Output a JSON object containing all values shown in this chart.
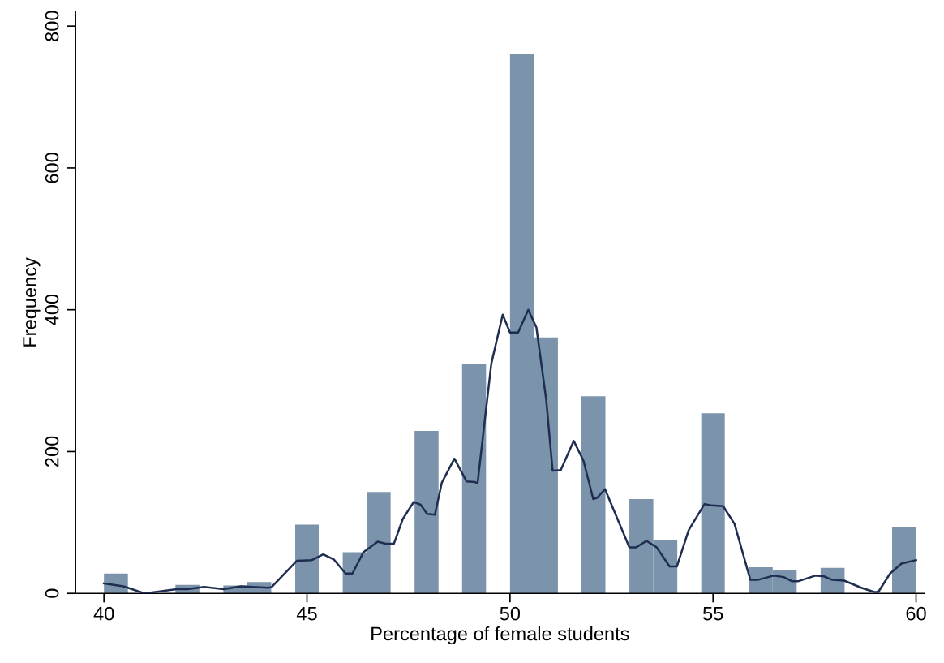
{
  "chart_data": {
    "type": "histogram",
    "xlabel": "Percentage of female students",
    "ylabel": "Frequency",
    "bins": [
      40,
      40.59,
      41.76,
      42.35,
      42.94,
      43.53,
      44.12,
      44.71,
      45.29,
      45.88,
      46.47,
      47.06,
      47.65,
      48.24,
      48.82,
      49.41,
      50,
      50.59,
      51.18,
      51.76,
      52.35,
      52.94,
      53.53,
      54.12,
      54.71,
      55.29,
      55.88,
      56.47,
      57.06,
      57.65,
      58.24,
      59.41,
      60
    ],
    "values": [
      28,
      0,
      12,
      0,
      11,
      16,
      0,
      97,
      0,
      58,
      143,
      0,
      229,
      0,
      324,
      0,
      761,
      361,
      0,
      278,
      0,
      133,
      75,
      0,
      254,
      0,
      37,
      33,
      0,
      36,
      0,
      94
    ],
    "color": "#7b93ab",
    "series": [
      {
        "type": "line",
        "color": "#1f2d50",
        "x": [
          40.0,
          40.48,
          41.0,
          41.79,
          42.05,
          42.47,
          42.95,
          43.37,
          44.05,
          44.13,
          44.75,
          45.12,
          45.4,
          45.66,
          45.95,
          46.12,
          46.39,
          46.74,
          46.94,
          47.14,
          47.36,
          47.63,
          47.8,
          47.96,
          48.15,
          48.32,
          48.63,
          48.93,
          49.14,
          49.2,
          49.54,
          49.82,
          50.0,
          50.2,
          50.45,
          50.65,
          50.89,
          51.05,
          51.25,
          51.57,
          51.81,
          52.05,
          52.15,
          52.34,
          52.94,
          53.11,
          53.36,
          53.61,
          53.93,
          54.11,
          54.4,
          54.79,
          54.97,
          55.25,
          55.53,
          55.92,
          56.1,
          56.49,
          56.74,
          56.95,
          57.09,
          57.52,
          57.73,
          57.94,
          58.23,
          58.65,
          58.97,
          59.07,
          59.36,
          59.64,
          60.0
        ],
        "values": [
          14,
          10,
          0,
          6,
          6,
          9,
          6,
          10,
          8,
          9,
          46,
          47,
          55,
          48,
          28,
          28,
          58,
          73,
          70,
          70,
          105,
          129,
          125,
          112,
          111,
          156,
          190,
          158,
          157,
          155,
          324,
          393,
          368,
          368,
          400,
          375,
          274,
          173,
          174,
          215,
          187,
          133,
          135,
          147,
          65,
          65,
          74,
          65,
          38,
          38,
          89,
          126,
          124,
          123,
          98,
          19,
          19,
          25,
          23,
          17,
          17,
          25,
          24,
          19,
          18,
          8,
          2,
          2,
          28,
          42,
          47
        ]
      }
    ],
    "xlim": [
      39.3,
      60.2
    ],
    "xticks": [
      40,
      45,
      50,
      55,
      60
    ],
    "ylim": [
      0,
      820
    ],
    "yticks": [
      0,
      200,
      400,
      600,
      800
    ],
    "grid": false,
    "legend": false
  }
}
